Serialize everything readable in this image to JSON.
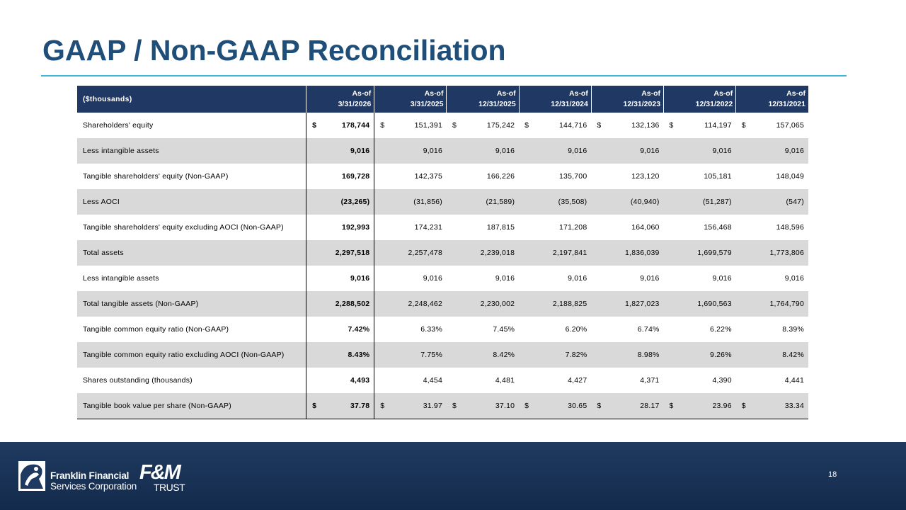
{
  "slide": {
    "title": "GAAP / Non-GAAP Reconciliation",
    "page_number": "18"
  },
  "table": {
    "label_header": "($thousands)",
    "columns": [
      {
        "line1": "As-of",
        "line2": "3/31/2026"
      },
      {
        "line1": "As-of",
        "line2": "3/31/2025"
      },
      {
        "line1": "As-of",
        "line2": "12/31/2025"
      },
      {
        "line1": "As-of",
        "line2": "12/31/2024"
      },
      {
        "line1": "As-of",
        "line2": "12/31/2023"
      },
      {
        "line1": "As-of",
        "line2": "12/31/2022"
      },
      {
        "line1": "As-of",
        "line2": "12/31/2021"
      }
    ],
    "rows": [
      {
        "label": "Shareholders' equity",
        "dollar": "$",
        "values": [
          "178,744",
          "151,391",
          "175,242",
          "144,716",
          "132,136",
          "114,197",
          "157,065"
        ]
      },
      {
        "label": "Less intangible assets",
        "dollar": "",
        "values": [
          "9,016",
          "9,016",
          "9,016",
          "9,016",
          "9,016",
          "9,016",
          "9,016"
        ]
      },
      {
        "label": "Tangible shareholders' equity (Non-GAAP)",
        "dollar": "",
        "values": [
          "169,728",
          "142,375",
          "166,226",
          "135,700",
          "123,120",
          "105,181",
          "148,049"
        ]
      },
      {
        "label": "Less AOCI",
        "dollar": "",
        "values": [
          "(23,265)",
          "(31,856)",
          "(21,589)",
          "(35,508)",
          "(40,940)",
          "(51,287)",
          "(547)"
        ]
      },
      {
        "label": "Tangible shareholders' equity excluding AOCI (Non-GAAP)",
        "dollar": "",
        "values": [
          "192,993",
          "174,231",
          "187,815",
          "171,208",
          "164,060",
          "156,468",
          "148,596"
        ]
      },
      {
        "label": "Total assets",
        "dollar": "",
        "values": [
          "2,297,518",
          "2,257,478",
          "2,239,018",
          "2,197,841",
          "1,836,039",
          "1,699,579",
          "1,773,806"
        ]
      },
      {
        "label": "Less intangible assets",
        "dollar": "",
        "values": [
          "9,016",
          "9,016",
          "9,016",
          "9,016",
          "9,016",
          "9,016",
          "9,016"
        ]
      },
      {
        "label": "Total tangible assets (Non-GAAP)",
        "dollar": "",
        "values": [
          "2,288,502",
          "2,248,462",
          "2,230,002",
          "2,188,825",
          "1,827,023",
          "1,690,563",
          "1,764,790"
        ]
      },
      {
        "label": "Tangible common equity ratio (Non-GAAP)",
        "dollar": "",
        "values": [
          "7.42%",
          "6.33%",
          "7.45%",
          "6.20%",
          "6.74%",
          "6.22%",
          "8.39%"
        ]
      },
      {
        "label": "Tangible common equity ratio excluding AOCI (Non-GAAP)",
        "dollar": "",
        "values": [
          "8.43%",
          "7.75%",
          "8.42%",
          "7.82%",
          "8.98%",
          "9.26%",
          "8.42%"
        ]
      },
      {
        "label": "Shares outstanding (thousands)",
        "dollar": "",
        "values": [
          "4,493",
          "4,454",
          "4,481",
          "4,427",
          "4,371",
          "4,390",
          "4,441"
        ]
      },
      {
        "label": "Tangible book value per share (Non-GAAP)",
        "dollar": "$",
        "values": [
          "37.78",
          "31.97",
          "37.10",
          "30.65",
          "28.17",
          "23.96",
          "33.34"
        ]
      }
    ]
  },
  "footer": {
    "ffsc_line1": "Franklin Financial",
    "ffsc_line2": "Services Corporation",
    "fm_mark": "F&M",
    "fm_word": "TRUST"
  },
  "colors": {
    "title": "#1f4e79",
    "header_bg": "#1f3864",
    "rule": "#3fb3d9",
    "shade": "#d9d9d9",
    "footer_bg": "#1a3458"
  }
}
